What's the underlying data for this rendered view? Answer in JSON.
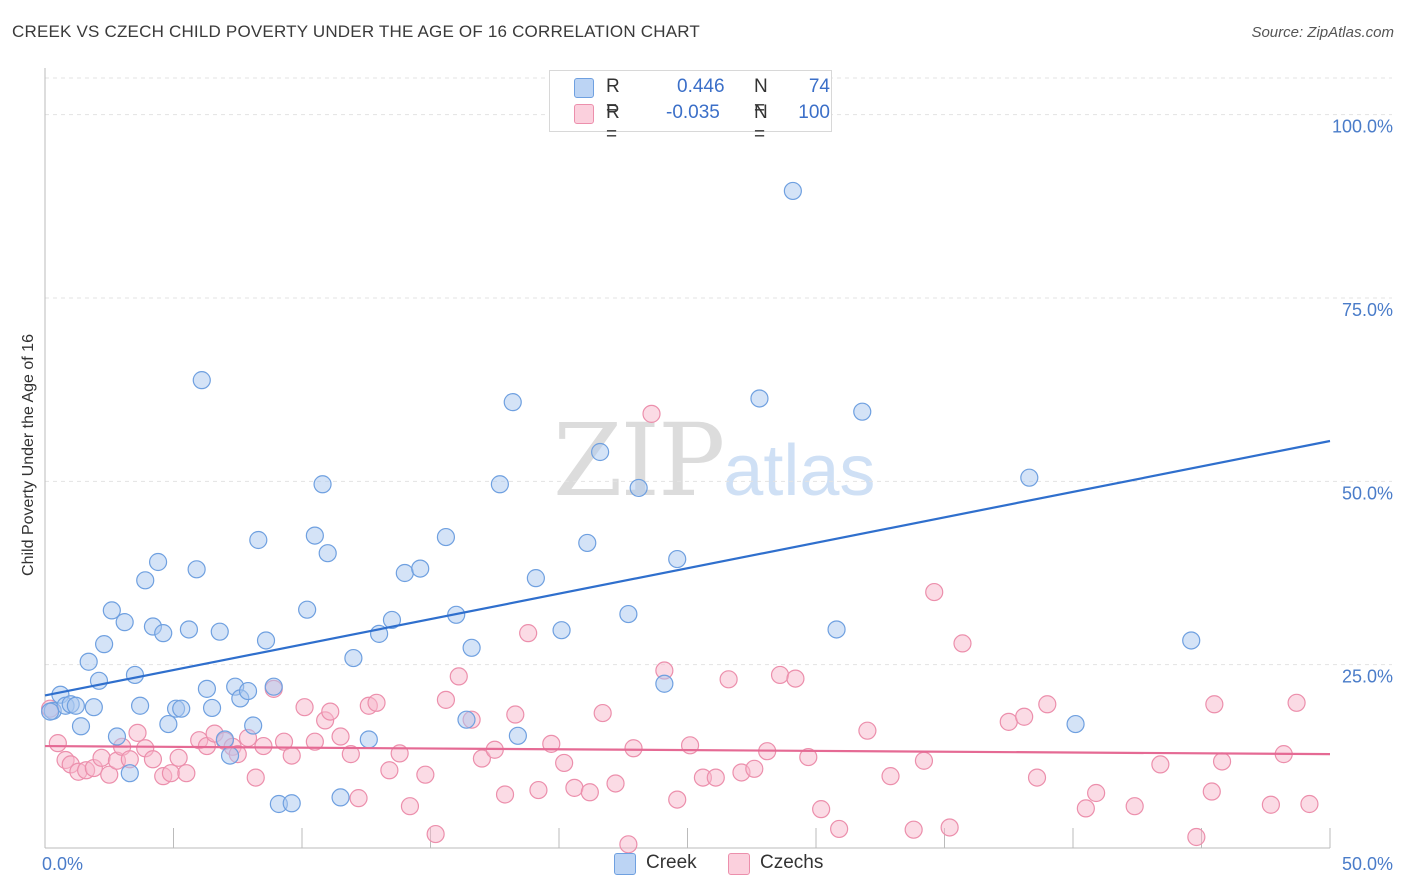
{
  "header": {
    "title": "CREEK VS CZECH CHILD POVERTY UNDER THE AGE OF 16 CORRELATION CHART",
    "source": "Source: ZipAtlas.com"
  },
  "watermark": {
    "zip": "ZIP",
    "atlas": "atlas"
  },
  "legend": {
    "rows": [
      {
        "r_label": "R =",
        "r_value": "0.446",
        "n_label": "N =",
        "n_value": "74",
        "color": "#a9c8f0"
      },
      {
        "r_label": "R =",
        "r_value": "-0.035",
        "n_label": "N =",
        "n_value": "100",
        "color": "#f7b8cc"
      }
    ]
  },
  "bottom_legend": {
    "items": [
      {
        "label": "Creek",
        "color": "#a9c8f0"
      },
      {
        "label": "Czechs",
        "color": "#f7b8cc"
      }
    ]
  },
  "chart_data": {
    "type": "scatter",
    "title": "CREEK VS CZECH CHILD POVERTY UNDER THE AGE OF 16 CORRELATION CHART",
    "xlabel": "",
    "ylabel": "Child Poverty Under the Age of 16",
    "xlim": [
      0,
      50
    ],
    "ylim": [
      0,
      105
    ],
    "x_tick_labels": [
      "0.0%",
      "50.0%"
    ],
    "y_ticks": [
      25,
      50,
      75,
      100
    ],
    "y_tick_labels": [
      "25.0%",
      "50.0%",
      "75.0%",
      "100.0%"
    ],
    "grid": true,
    "legend_position": "top-center",
    "series": [
      {
        "name": "Creek",
        "color": "#6fa0e0",
        "fill": "#a9c8f0",
        "trend": {
          "x": [
            0,
            50
          ],
          "y": [
            20.8,
            55.5
          ],
          "color": "#2f6fcd"
        },
        "points": [
          [
            0.3,
            18.7
          ],
          [
            0.6,
            20.9
          ],
          [
            0.8,
            19.4
          ],
          [
            1.0,
            19.6
          ],
          [
            1.2,
            19.4
          ],
          [
            1.4,
            16.6
          ],
          [
            1.7,
            25.4
          ],
          [
            1.9,
            19.2
          ],
          [
            2.1,
            22.8
          ],
          [
            2.3,
            27.8
          ],
          [
            2.6,
            32.4
          ],
          [
            2.8,
            15.2
          ],
          [
            3.1,
            30.8
          ],
          [
            3.3,
            10.2
          ],
          [
            3.5,
            23.6
          ],
          [
            3.7,
            19.4
          ],
          [
            3.9,
            36.5
          ],
          [
            4.2,
            30.2
          ],
          [
            4.4,
            39.0
          ],
          [
            4.6,
            29.3
          ],
          [
            4.8,
            16.9
          ],
          [
            5.1,
            19.0
          ],
          [
            5.3,
            19.0
          ],
          [
            5.6,
            29.8
          ],
          [
            5.9,
            38.0
          ],
          [
            6.1,
            63.8
          ],
          [
            6.3,
            21.7
          ],
          [
            6.5,
            19.1
          ],
          [
            6.8,
            29.5
          ],
          [
            7.0,
            14.8
          ],
          [
            7.2,
            12.6
          ],
          [
            7.4,
            22.0
          ],
          [
            7.6,
            20.4
          ],
          [
            7.9,
            21.4
          ],
          [
            8.1,
            16.7
          ],
          [
            8.3,
            42.0
          ],
          [
            8.6,
            28.3
          ],
          [
            8.9,
            22.0
          ],
          [
            9.1,
            6.0
          ],
          [
            9.6,
            6.1
          ],
          [
            10.2,
            32.5
          ],
          [
            10.5,
            42.6
          ],
          [
            10.8,
            49.6
          ],
          [
            11.0,
            40.2
          ],
          [
            11.5,
            6.9
          ],
          [
            12.0,
            25.9
          ],
          [
            12.6,
            14.8
          ],
          [
            13.0,
            29.2
          ],
          [
            13.5,
            31.1
          ],
          [
            14.0,
            37.5
          ],
          [
            14.6,
            38.1
          ],
          [
            15.6,
            42.4
          ],
          [
            16.0,
            31.8
          ],
          [
            16.4,
            17.5
          ],
          [
            16.6,
            27.3
          ],
          [
            17.7,
            49.6
          ],
          [
            18.2,
            60.8
          ],
          [
            18.4,
            15.3
          ],
          [
            19.1,
            36.8
          ],
          [
            20.1,
            29.7
          ],
          [
            21.1,
            41.6
          ],
          [
            21.6,
            54.0
          ],
          [
            22.7,
            31.9
          ],
          [
            23.1,
            49.1
          ],
          [
            24.1,
            22.4
          ],
          [
            24.6,
            39.4
          ],
          [
            27.8,
            61.3
          ],
          [
            29.1,
            89.6
          ],
          [
            30.8,
            29.8
          ],
          [
            31.8,
            59.5
          ],
          [
            38.3,
            50.5
          ],
          [
            40.1,
            16.9
          ],
          [
            44.6,
            28.3
          ],
          [
            0.2,
            18.6
          ]
        ]
      },
      {
        "name": "Czechs",
        "color": "#ec8fac",
        "fill": "#f7b8cc",
        "trend": {
          "x": [
            0,
            50
          ],
          "y": [
            13.9,
            12.8
          ],
          "color": "#e56a94"
        },
        "points": [
          [
            0.2,
            19.0
          ],
          [
            0.5,
            14.3
          ],
          [
            0.8,
            12.0
          ],
          [
            1.0,
            11.4
          ],
          [
            1.3,
            10.4
          ],
          [
            1.6,
            10.6
          ],
          [
            1.9,
            10.9
          ],
          [
            2.2,
            12.3
          ],
          [
            2.5,
            10.0
          ],
          [
            2.8,
            11.9
          ],
          [
            3.0,
            13.8
          ],
          [
            3.3,
            12.1
          ],
          [
            3.6,
            15.7
          ],
          [
            3.9,
            13.6
          ],
          [
            4.2,
            12.1
          ],
          [
            4.6,
            9.8
          ],
          [
            4.9,
            10.2
          ],
          [
            5.2,
            12.3
          ],
          [
            5.5,
            10.2
          ],
          [
            6.0,
            14.7
          ],
          [
            6.3,
            13.9
          ],
          [
            6.6,
            15.6
          ],
          [
            7.0,
            14.6
          ],
          [
            7.3,
            13.8
          ],
          [
            7.5,
            12.8
          ],
          [
            7.9,
            15.0
          ],
          [
            8.2,
            9.6
          ],
          [
            8.5,
            13.9
          ],
          [
            8.9,
            21.7
          ],
          [
            9.3,
            14.5
          ],
          [
            9.6,
            12.6
          ],
          [
            10.1,
            19.2
          ],
          [
            10.5,
            14.5
          ],
          [
            10.9,
            17.4
          ],
          [
            11.1,
            18.6
          ],
          [
            11.5,
            15.2
          ],
          [
            11.9,
            12.8
          ],
          [
            12.2,
            6.8
          ],
          [
            12.6,
            19.4
          ],
          [
            12.9,
            19.8
          ],
          [
            13.4,
            10.6
          ],
          [
            13.8,
            12.9
          ],
          [
            14.2,
            5.7
          ],
          [
            14.8,
            10.0
          ],
          [
            15.2,
            1.9
          ],
          [
            15.6,
            20.2
          ],
          [
            16.1,
            23.4
          ],
          [
            16.6,
            17.5
          ],
          [
            17.0,
            12.2
          ],
          [
            17.5,
            13.4
          ],
          [
            17.9,
            7.3
          ],
          [
            18.3,
            18.2
          ],
          [
            18.8,
            29.3
          ],
          [
            19.2,
            7.9
          ],
          [
            19.7,
            14.2
          ],
          [
            20.2,
            11.6
          ],
          [
            20.6,
            8.2
          ],
          [
            21.2,
            7.6
          ],
          [
            21.7,
            18.4
          ],
          [
            22.2,
            8.8
          ],
          [
            22.7,
            0.5
          ],
          [
            22.9,
            13.6
          ],
          [
            23.6,
            59.2
          ],
          [
            24.1,
            24.2
          ],
          [
            24.6,
            6.6
          ],
          [
            25.1,
            14.0
          ],
          [
            25.6,
            9.6
          ],
          [
            26.1,
            9.6
          ],
          [
            26.6,
            23.0
          ],
          [
            27.1,
            10.3
          ],
          [
            27.6,
            10.8
          ],
          [
            28.1,
            13.2
          ],
          [
            28.6,
            23.6
          ],
          [
            29.2,
            23.1
          ],
          [
            29.7,
            12.4
          ],
          [
            30.2,
            5.3
          ],
          [
            30.9,
            2.6
          ],
          [
            32.0,
            16.0
          ],
          [
            32.9,
            9.8
          ],
          [
            33.8,
            2.5
          ],
          [
            34.2,
            11.9
          ],
          [
            34.6,
            34.9
          ],
          [
            35.2,
            2.8
          ],
          [
            35.7,
            27.9
          ],
          [
            37.5,
            17.2
          ],
          [
            38.1,
            17.9
          ],
          [
            38.6,
            9.6
          ],
          [
            39.0,
            19.6
          ],
          [
            40.5,
            5.4
          ],
          [
            40.9,
            7.5
          ],
          [
            42.4,
            5.7
          ],
          [
            43.4,
            11.4
          ],
          [
            44.8,
            1.5
          ],
          [
            45.4,
            7.7
          ],
          [
            45.5,
            19.6
          ],
          [
            45.8,
            11.8
          ],
          [
            47.7,
            5.9
          ],
          [
            48.2,
            12.8
          ],
          [
            48.7,
            19.8
          ],
          [
            49.2,
            6.0
          ]
        ]
      }
    ]
  }
}
